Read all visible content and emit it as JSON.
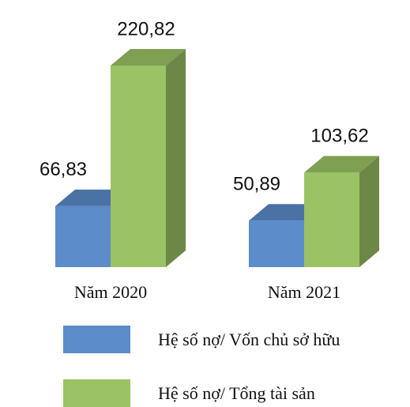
{
  "chart_data": {
    "type": "bar3d",
    "categories": [
      "Năm 2020",
      "Năm 2021"
    ],
    "series": [
      {
        "name": "Hệ số nợ/ Vốn chủ sở hữu",
        "color": "#5b8bc9",
        "values": [
          66.83,
          50.89
        ],
        "value_labels": [
          "66,83",
          "50,89"
        ]
      },
      {
        "name": "Hệ số nợ/ Tổng tài sản",
        "color": "#9bc264",
        "values": [
          220.82,
          103.62
        ],
        "value_labels": [
          "220,82",
          "103,62"
        ]
      }
    ]
  }
}
